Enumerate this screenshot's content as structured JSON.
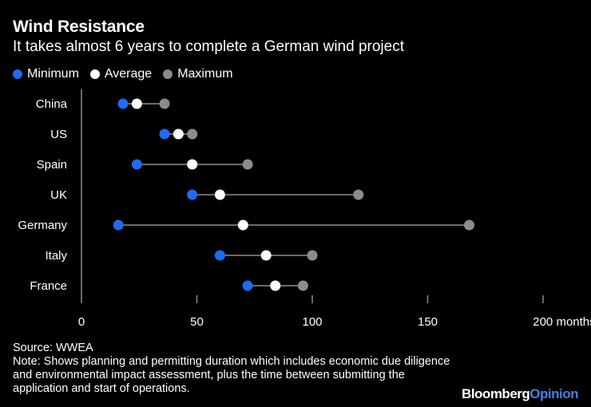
{
  "header": {
    "title": "Wind Resistance",
    "subtitle": "It takes almost 6 years to complete a German wind project"
  },
  "legend": [
    {
      "label": "Minimum",
      "color": "#1d6cf2"
    },
    {
      "label": "Average",
      "color": "#ffffff"
    },
    {
      "label": "Maximum",
      "color": "#8c8c8c"
    }
  ],
  "footer": {
    "source": "Source: WWEA",
    "note": "Note: Shows planning and permitting duration which includes economic due diligence and environmental impact assessment, plus the time between submitting the application and start of operations.",
    "logo_main": "Bloomberg",
    "logo_accent": "Opinion"
  },
  "chart_data": {
    "type": "dot-range",
    "categories": [
      "China",
      "US",
      "Spain",
      "UK",
      "Germany",
      "Italy",
      "France"
    ],
    "series": [
      {
        "name": "Minimum",
        "values": [
          18,
          36,
          24,
          48,
          16,
          60,
          72
        ]
      },
      {
        "name": "Average",
        "values": [
          24,
          42,
          48,
          60,
          70,
          80,
          84
        ]
      },
      {
        "name": "Maximum",
        "values": [
          36,
          48,
          72,
          120,
          168,
          100,
          96
        ]
      }
    ],
    "x_ticks": [
      "0",
      "50",
      "100",
      "150",
      "200 months"
    ],
    "x_tick_values": [
      0,
      50,
      100,
      150,
      200
    ],
    "xlim": [
      0,
      200
    ],
    "xlabel": "months",
    "colors": {
      "minimum": "#1d6cf2",
      "average": "#ffffff",
      "maximum": "#8c8c8c",
      "line": "#6b6b6b",
      "axis": "#8a8a8a"
    }
  }
}
